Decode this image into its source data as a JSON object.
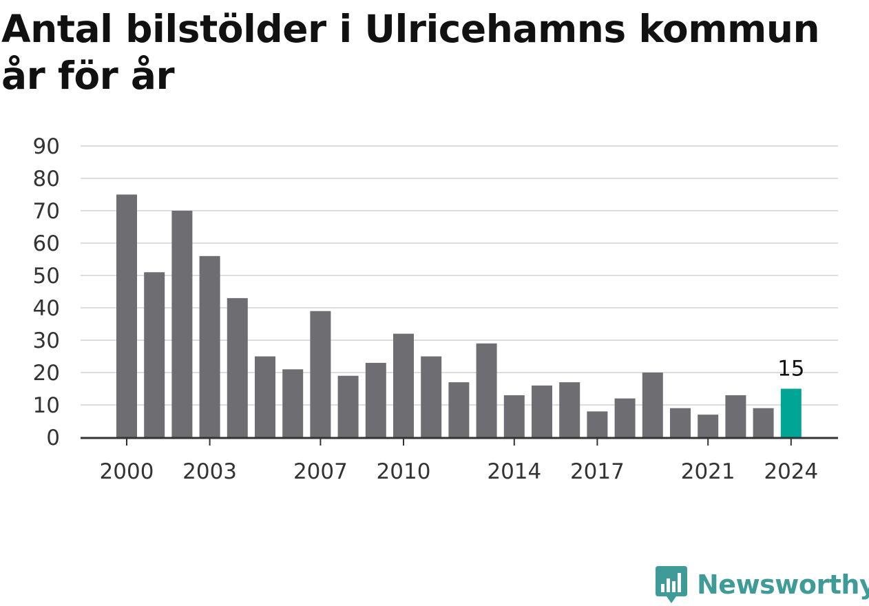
{
  "title": "Antal bilstölder i Ulricehamns kommun år för år",
  "brand": "Newsworthy",
  "colors": {
    "bar": "#6e6d72",
    "highlight": "#00a596",
    "grid": "#dddddd",
    "axis": "#333333",
    "brand": "#3e9b98"
  },
  "chart_data": {
    "type": "bar",
    "title": "Antal bilstölder i Ulricehamns kommun år för år",
    "xlabel": "",
    "ylabel": "",
    "categories": [
      "2000",
      "2001",
      "2002",
      "2003",
      "2004",
      "2005",
      "2006",
      "2007",
      "2008",
      "2009",
      "2010",
      "2011",
      "2012",
      "2013",
      "2014",
      "2015",
      "2016",
      "2017",
      "2018",
      "2019",
      "2020",
      "2021",
      "2022",
      "2023",
      "2024"
    ],
    "values": [
      75,
      51,
      70,
      56,
      43,
      25,
      21,
      39,
      19,
      23,
      32,
      25,
      17,
      29,
      13,
      16,
      17,
      8,
      12,
      20,
      9,
      7,
      13,
      9,
      15
    ],
    "ylim": [
      0,
      90
    ],
    "yticks": [
      0,
      10,
      20,
      30,
      40,
      50,
      60,
      70,
      80,
      90
    ],
    "xticks": [
      "2000",
      "2003",
      "2007",
      "2010",
      "2014",
      "2017",
      "2021",
      "2024"
    ],
    "highlight_index": 24,
    "data_labels": [
      {
        "index": 24,
        "text": "15"
      }
    ],
    "grid": true,
    "legend": "none"
  }
}
